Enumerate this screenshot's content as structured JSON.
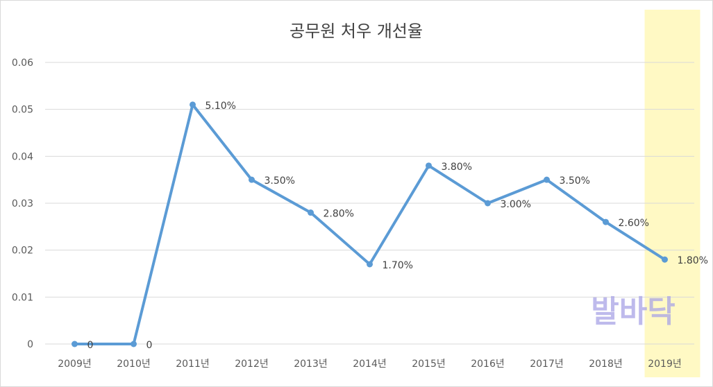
{
  "chart_data": {
    "type": "line",
    "title": "공무원 처우 개선율",
    "categories": [
      "2009년",
      "2010년",
      "2011년",
      "2012년",
      "2013년",
      "2014년",
      "2015년",
      "2016년",
      "2017년",
      "2018년",
      "2019년"
    ],
    "series": [
      {
        "values": [
          0,
          0,
          0.051,
          0.035,
          0.028,
          0.017,
          0.038,
          0.03,
          0.035,
          0.026,
          0.018
        ],
        "data_labels": [
          "0",
          "0",
          "5.10%",
          "3.50%",
          "2.80%",
          "1.70%",
          "3.80%",
          "3.00%",
          "3.50%",
          "2.60%",
          "1.80%"
        ]
      }
    ],
    "y_ticks": [
      "0",
      "0.01",
      "0.02",
      "0.03",
      "0.04",
      "0.05",
      "0.06"
    ],
    "ylim": [
      0,
      0.06
    ],
    "grid": true,
    "highlight_category": "2019년",
    "colors": {
      "line": "#5b9bd5",
      "grid": "#d9d9d9",
      "highlight": "#fff9c4",
      "border": "#d9d9d9"
    }
  },
  "watermark": "발바닥"
}
